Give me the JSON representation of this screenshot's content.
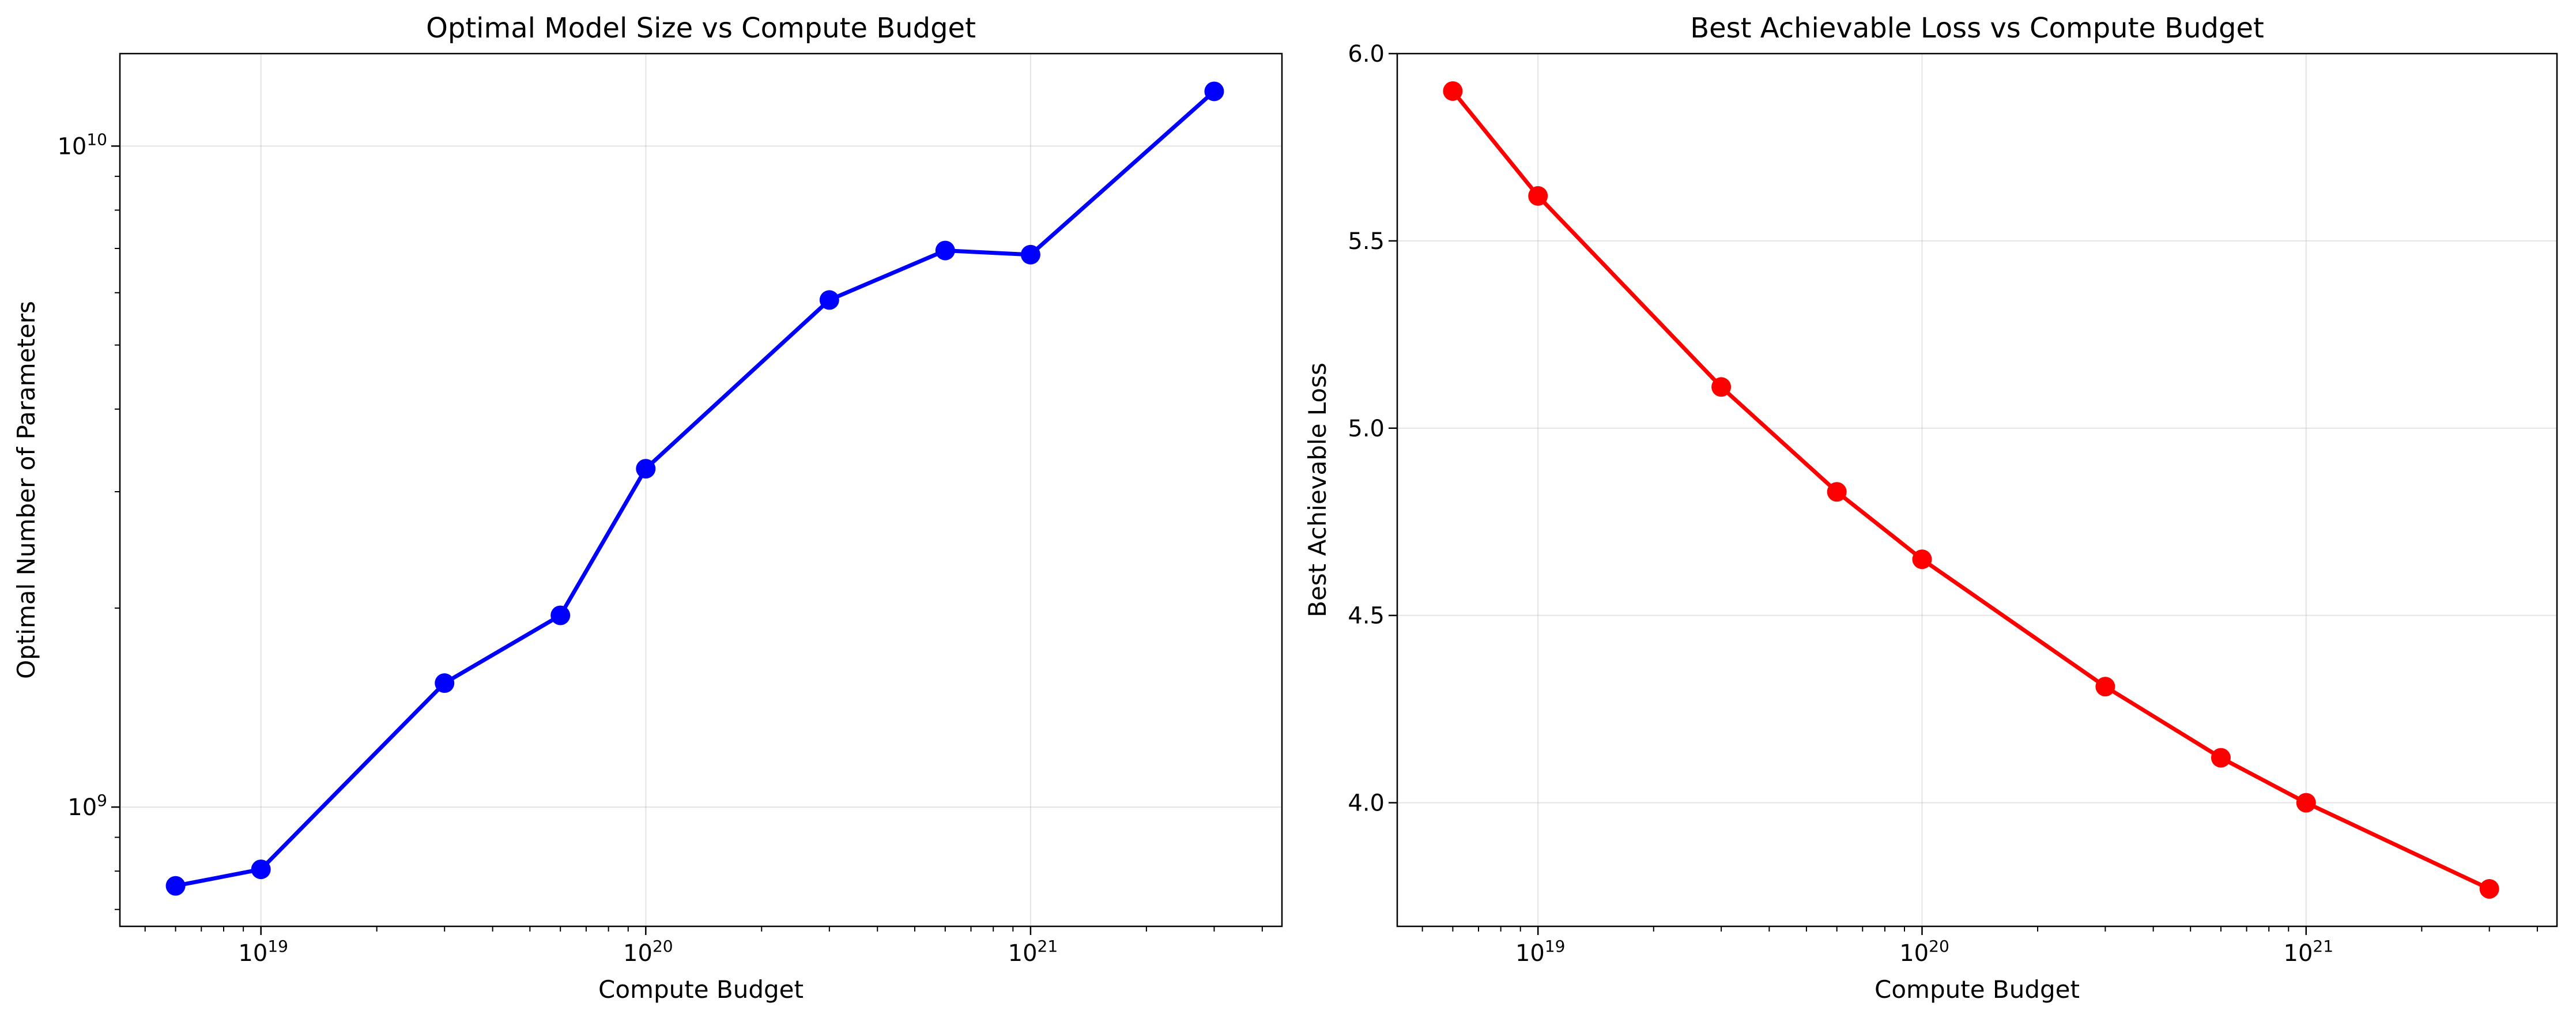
{
  "chart_data": [
    {
      "type": "line",
      "title": "Optimal Model Size vs Compute Budget",
      "xlabel": "Compute Budget",
      "ylabel": "Optimal Number of Parameters",
      "xscale": "log",
      "yscale": "log",
      "xlim": [
        4.3e+18,
        4.5e+21
      ],
      "ylim": [
        660000000.0,
        13800000000.0
      ],
      "grid": true,
      "color": "#0000ff",
      "xticks": [
        {
          "value": 1e+19,
          "base": "10",
          "exp": "19"
        },
        {
          "value": 1e+20,
          "base": "10",
          "exp": "20"
        },
        {
          "value": 1e+21,
          "base": "10",
          "exp": "21"
        }
      ],
      "yticks": [
        {
          "value": 1000000000.0,
          "base": "10",
          "exp": "9"
        },
        {
          "value": 10000000000.0,
          "base": "10",
          "exp": "10"
        }
      ],
      "series": [
        {
          "x": [
            6e+18,
            1e+19,
            3e+19,
            6e+19,
            1e+20,
            3e+20,
            6e+20,
            1e+21,
            3e+21
          ],
          "y": [
            760000000.0,
            805000000.0,
            1540000000.0,
            1950000000.0,
            3250000000.0,
            5850000000.0,
            6950000000.0,
            6850000000.0,
            12100000000.0
          ]
        }
      ]
    },
    {
      "type": "line",
      "title": "Best Achievable Loss vs Compute Budget",
      "xlabel": "Compute Budget",
      "ylabel": "Best Achievable Loss",
      "xscale": "log",
      "yscale": "linear",
      "xlim": [
        4.3e+18,
        4.5e+21
      ],
      "ylim": [
        3.67,
        6.0
      ],
      "grid": true,
      "color": "#ff0000",
      "xticks": [
        {
          "value": 1e+19,
          "base": "10",
          "exp": "19"
        },
        {
          "value": 1e+20,
          "base": "10",
          "exp": "20"
        },
        {
          "value": 1e+21,
          "base": "10",
          "exp": "21"
        }
      ],
      "yticks": [
        {
          "value": 4.0,
          "label": "4.0"
        },
        {
          "value": 4.5,
          "label": "4.5"
        },
        {
          "value": 5.0,
          "label": "5.0"
        },
        {
          "value": 5.5,
          "label": "5.5"
        },
        {
          "value": 6.0,
          "label": "6.0"
        }
      ],
      "series": [
        {
          "x": [
            6e+18,
            1e+19,
            3e+19,
            6e+19,
            1e+20,
            3e+20,
            6e+20,
            1e+21,
            3e+21
          ],
          "y": [
            5.9,
            5.62,
            5.11,
            4.83,
            4.65,
            4.31,
            4.12,
            4.0,
            3.77
          ]
        }
      ]
    }
  ]
}
